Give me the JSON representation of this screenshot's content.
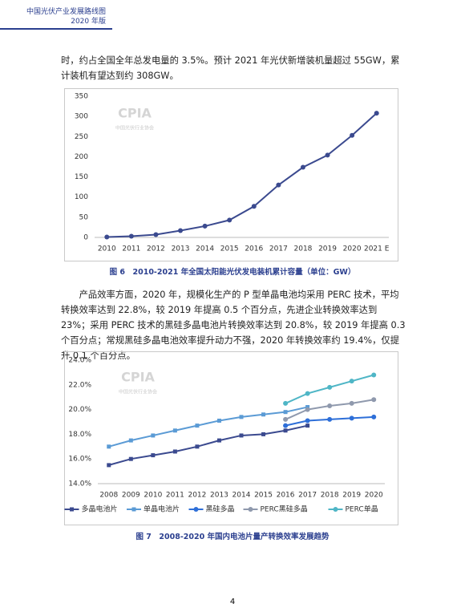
{
  "header": {
    "title": "中国光伏产业发展路线图",
    "edition": "2020 年版"
  },
  "paragraphs": [
    "时，约占全国全年总发电量的 3.5%。预计 2021 年光伏新增装机量超过 55GW，累计装机有望达到约 308GW。",
    "产品效率方面，2020 年，规模化生产的 P 型单晶电池均采用 PERC 技术，平均转换效率达到 22.8%，较 2019 年提高 0.5 个百分点，先进企业转换效率达到 23%；采用 PERC 技术的黑硅多晶电池片转换效率达到 20.8%，较 2019 年提高 0.3 个百分点；常规黑硅多晶电池效率提升动力不强，2020 年转换效率约 19.4%，仅提升 0.1 个百分点。"
  ],
  "chart_data": [
    {
      "type": "line",
      "caption": "图 6　2010-2021 年全国太阳能光伏发电装机累计容量（单位：GW）",
      "watermark": {
        "logo": "CPIA",
        "org": "中国光伏行业协会"
      },
      "categories": [
        "2010",
        "2011",
        "2012",
        "2013",
        "2014",
        "2015",
        "2016",
        "2017",
        "2018",
        "2019",
        "2020",
        "2021 E"
      ],
      "series": [
        {
          "color": "#3b4a8f",
          "marker": "circle",
          "values": [
            0.9,
            3,
            7,
            17,
            28,
            43,
            77,
            130,
            174,
            204,
            253,
            308
          ]
        }
      ],
      "ylim": [
        0,
        350
      ],
      "yticks": [
        0,
        50,
        100,
        150,
        200,
        250,
        300,
        350
      ],
      "grid": false
    },
    {
      "type": "line",
      "caption": "图 7　2008-2020 年国内电池片量产转换效率发展趋势",
      "watermark": {
        "logo": "CPIA",
        "org": "中国光伏行业协会"
      },
      "categories": [
        "2008",
        "2009",
        "2010",
        "2011",
        "2012",
        "2013",
        "2014",
        "2015",
        "2016",
        "2017",
        "2018",
        "2019",
        "2020"
      ],
      "series": [
        {
          "name": "多晶电池片",
          "color": "#3b4a8f",
          "marker": "square",
          "values": [
            15.5,
            16.0,
            16.3,
            16.6,
            17.0,
            17.5,
            17.9,
            18.0,
            18.3,
            18.7,
            null,
            null,
            null
          ]
        },
        {
          "name": "单晶电池片",
          "color": "#5b9bd5",
          "marker": "square",
          "values": [
            17.0,
            17.5,
            17.9,
            18.3,
            18.7,
            19.1,
            19.4,
            19.6,
            19.8,
            20.2,
            null,
            null,
            null
          ]
        },
        {
          "name": "黑硅多晶",
          "color": "#2e6fd8",
          "marker": "circle",
          "values": [
            null,
            null,
            null,
            null,
            null,
            null,
            null,
            null,
            18.7,
            19.1,
            19.2,
            19.3,
            19.4
          ]
        },
        {
          "name": "PERC黑硅多晶",
          "color": "#8f99ad",
          "marker": "circle",
          "values": [
            null,
            null,
            null,
            null,
            null,
            null,
            null,
            null,
            19.2,
            20.0,
            20.3,
            20.5,
            20.8
          ]
        },
        {
          "name": "PERC单晶",
          "color": "#4fb6c6",
          "marker": "circle",
          "values": [
            null,
            null,
            null,
            null,
            null,
            null,
            null,
            null,
            20.5,
            21.3,
            21.8,
            22.3,
            22.8
          ]
        }
      ],
      "ylim": [
        14,
        24
      ],
      "yticks": [
        {
          "value": 14,
          "label": "14.0%"
        },
        {
          "value": 16,
          "label": "16.0%"
        },
        {
          "value": 18,
          "label": "18.0%"
        },
        {
          "value": 20,
          "label": "20.0%"
        },
        {
          "value": 22,
          "label": "22.0%"
        },
        {
          "value": 24,
          "label": "24.0%"
        }
      ],
      "grid": false,
      "legend": "bottom"
    }
  ],
  "page_number": "4"
}
